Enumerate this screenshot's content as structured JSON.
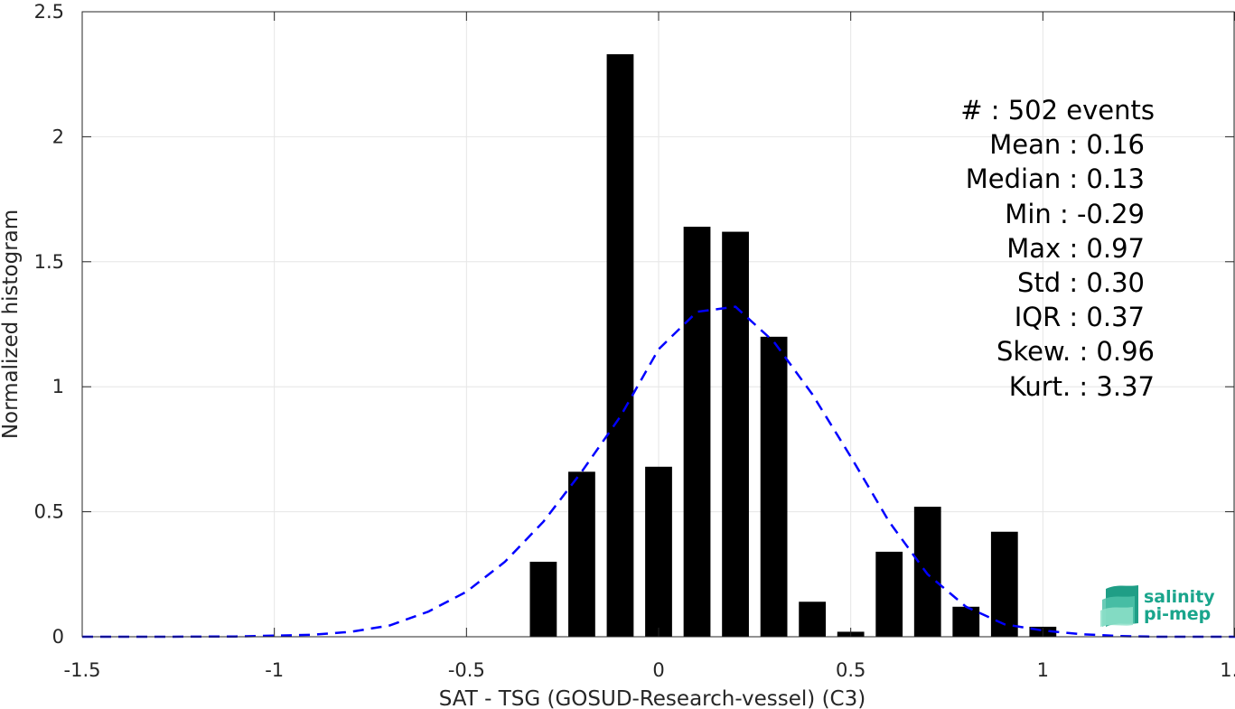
{
  "chart_data": {
    "type": "bar",
    "xlabel": "SAT - TSG (GOSUD-Research-vessel) (C3)",
    "ylabel": "Normalized histogram",
    "xlim": [
      -1.5,
      1.5
    ],
    "ylim": [
      0,
      2.5
    ],
    "grid": true,
    "xticks": [
      -1.5,
      -1,
      -0.5,
      0,
      0.5,
      1,
      1.5
    ],
    "xtick_labels": [
      "-1.5",
      "-1",
      "-0.5",
      "0",
      "0.5",
      "1",
      "1.5"
    ],
    "yticks": [
      0,
      0.5,
      1,
      1.5,
      2,
      2.5
    ],
    "ytick_labels": [
      "0",
      "0.5",
      "1",
      "1.5",
      "2",
      "2.5"
    ],
    "bar_width": 0.07,
    "bars": [
      {
        "x": -0.3,
        "y": 0.3
      },
      {
        "x": -0.2,
        "y": 0.66
      },
      {
        "x": -0.1,
        "y": 2.33
      },
      {
        "x": 0.0,
        "y": 0.68
      },
      {
        "x": 0.1,
        "y": 1.64
      },
      {
        "x": 0.2,
        "y": 1.62
      },
      {
        "x": 0.3,
        "y": 1.2
      },
      {
        "x": 0.4,
        "y": 0.14
      },
      {
        "x": 0.5,
        "y": 0.02
      },
      {
        "x": 0.6,
        "y": 0.34
      },
      {
        "x": 0.7,
        "y": 0.52
      },
      {
        "x": 0.8,
        "y": 0.12
      },
      {
        "x": 0.9,
        "y": 0.42
      },
      {
        "x": 1.0,
        "y": 0.04
      }
    ],
    "fit_curve": {
      "style": "dashed",
      "color": "#0000ff",
      "points": [
        [
          -1.5,
          0.0
        ],
        [
          -1.3,
          0.0
        ],
        [
          -1.1,
          0.001
        ],
        [
          -0.9,
          0.008
        ],
        [
          -0.8,
          0.02
        ],
        [
          -0.7,
          0.045
        ],
        [
          -0.6,
          0.1
        ],
        [
          -0.5,
          0.18
        ],
        [
          -0.4,
          0.3
        ],
        [
          -0.3,
          0.46
        ],
        [
          -0.2,
          0.66
        ],
        [
          -0.1,
          0.88
        ],
        [
          0.0,
          1.15
        ],
        [
          0.1,
          1.3
        ],
        [
          0.2,
          1.32
        ],
        [
          0.3,
          1.18
        ],
        [
          0.4,
          0.97
        ],
        [
          0.5,
          0.72
        ],
        [
          0.6,
          0.46
        ],
        [
          0.7,
          0.25
        ],
        [
          0.8,
          0.12
        ],
        [
          0.9,
          0.05
        ],
        [
          1.0,
          0.025
        ],
        [
          1.1,
          0.01
        ],
        [
          1.2,
          0.003
        ],
        [
          1.3,
          0.0
        ],
        [
          1.5,
          0.0
        ]
      ]
    },
    "stats": [
      "#  : 502 events",
      "Mean : 0.16",
      "Median : 0.13",
      "Min : -0.29",
      "Max : 0.97",
      "Std : 0.30",
      "IQR : 0.37",
      "Skew. : 0.96",
      "Kurt. : 3.37"
    ]
  },
  "logo": {
    "line1": "salinity",
    "line2": "pi-mep"
  },
  "colors": {
    "bars": "#000000",
    "fit": "#0000ff",
    "grid": "#e6e6e6",
    "axis": "#262626",
    "logo": "#1aa58c"
  }
}
